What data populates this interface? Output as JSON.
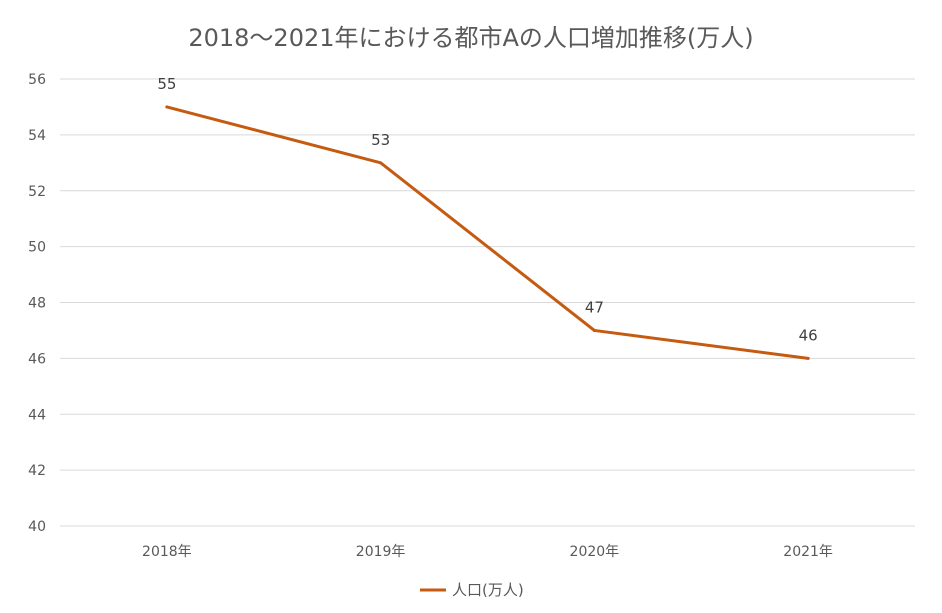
{
  "chart_data": {
    "type": "line",
    "title": "2018〜2021年における都市Aの人口増加推移(万人)",
    "categories": [
      "2018年",
      "2019年",
      "2020年",
      "2021年"
    ],
    "series": [
      {
        "name": "人口(万人)",
        "values": [
          55,
          53,
          47,
          46
        ],
        "color": "#C55A11"
      }
    ],
    "ylim": [
      40,
      56
    ],
    "yticks": [
      40,
      42,
      44,
      46,
      48,
      50,
      52,
      54,
      56
    ],
    "grid": true,
    "legend": "bottom",
    "data_labels": true
  }
}
